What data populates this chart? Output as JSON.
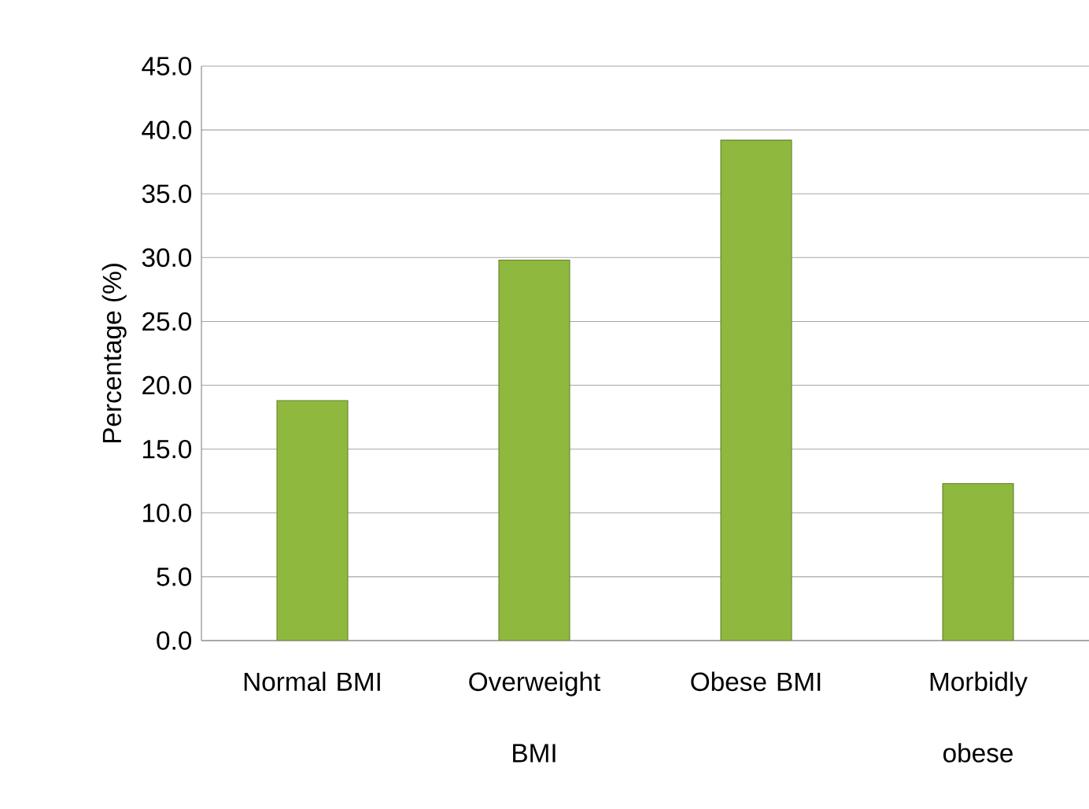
{
  "chart_data": {
    "type": "bar",
    "ylabel": "Percentage (%)",
    "categories": [
      "Normal BMI",
      "Overweight BMI",
      "Obese BMI",
      "Morbidly obese"
    ],
    "values": [
      18.8,
      29.8,
      39.2,
      12.3
    ],
    "color": "#8fb83e",
    "ylim": [
      0,
      45
    ],
    "yticks": [
      {
        "value": 0,
        "label": "0.0"
      },
      {
        "value": 5,
        "label": "5.0"
      },
      {
        "value": 10,
        "label": "10.0"
      },
      {
        "value": 15,
        "label": "15.0"
      },
      {
        "value": 20,
        "label": "20.0"
      },
      {
        "value": 25,
        "label": "25.0"
      },
      {
        "value": 30,
        "label": "30.0"
      },
      {
        "value": 35,
        "label": "35.0"
      },
      {
        "value": 40,
        "label": "40.0"
      },
      {
        "value": 45,
        "label": "45.0"
      }
    ],
    "grid": "y"
  }
}
